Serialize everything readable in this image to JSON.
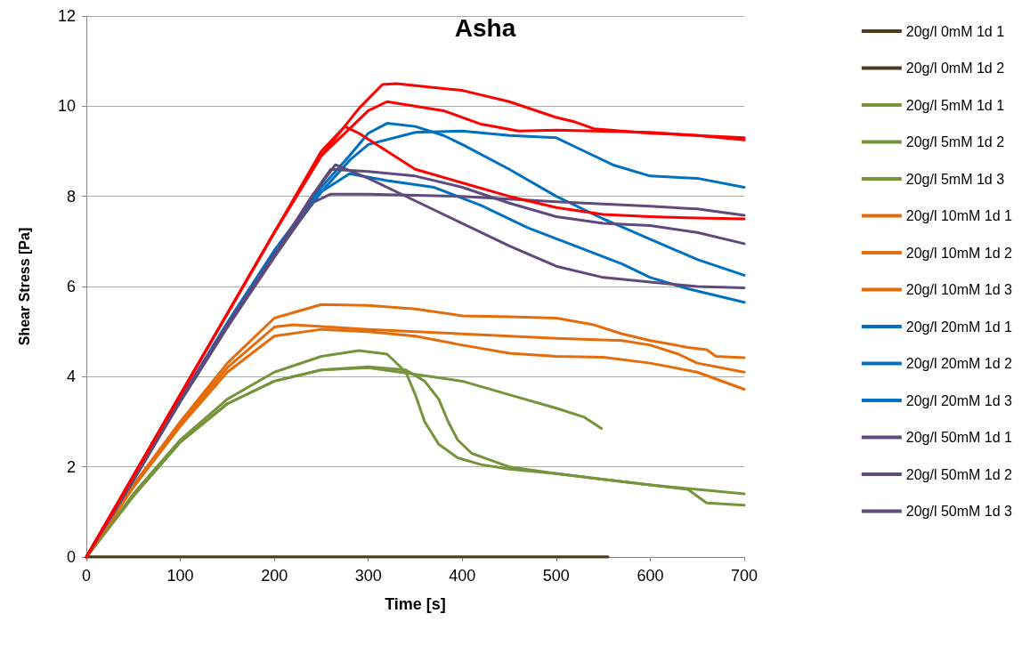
{
  "chart_data": {
    "type": "line",
    "title": "Asha",
    "xlabel": "Time [s]",
    "ylabel": "Shear Stress [Pa]",
    "xlim": [
      0,
      700
    ],
    "xticks": [
      0,
      100,
      200,
      300,
      400,
      500,
      600,
      700
    ],
    "ylim": [
      0,
      12
    ],
    "yticks": [
      0,
      2,
      4,
      6,
      8,
      10,
      12
    ],
    "grid": "y",
    "legend": "right",
    "marker": "none",
    "line_style": "solid",
    "series": [
      {
        "name": "20g/l 0mM 1d 1",
        "color": "#4a3c1c",
        "x": [
          0,
          555
        ],
        "values": [
          0,
          0
        ]
      },
      {
        "name": "20g/l 0mM 1d 2",
        "color": "#4a3c1c",
        "x": [
          0,
          555
        ],
        "values": [
          0,
          0
        ]
      },
      {
        "name": "20g/l 5mM 1d 1",
        "color": "#77933c",
        "x": [
          0,
          50,
          100,
          150,
          200,
          250,
          290,
          320,
          340,
          350,
          360,
          375,
          395,
          420,
          450,
          500,
          550,
          600,
          640,
          660,
          700
        ],
        "values": [
          0,
          1.4,
          2.6,
          3.5,
          4.1,
          4.45,
          4.58,
          4.5,
          4.1,
          3.6,
          3.0,
          2.5,
          2.2,
          2.05,
          1.95,
          1.85,
          1.72,
          1.6,
          1.5,
          1.2,
          1.15
        ]
      },
      {
        "name": "20g/l 5mM 1d 2",
        "color": "#77933c",
        "x": [
          0,
          50,
          100,
          150,
          200,
          250,
          300,
          340,
          360,
          375,
          385,
          395,
          410,
          430,
          450,
          500,
          550,
          600,
          650,
          700
        ],
        "values": [
          0,
          1.35,
          2.55,
          3.4,
          3.9,
          4.15,
          4.22,
          4.15,
          3.9,
          3.5,
          3.0,
          2.6,
          2.3,
          2.15,
          2.0,
          1.85,
          1.72,
          1.6,
          1.5,
          1.4
        ]
      },
      {
        "name": "20g/l 5mM 1d 3",
        "color": "#77933c",
        "x": [
          0,
          50,
          100,
          150,
          200,
          250,
          300,
          350,
          400,
          450,
          500,
          530,
          548
        ],
        "values": [
          0,
          1.35,
          2.55,
          3.4,
          3.9,
          4.15,
          4.2,
          4.05,
          3.9,
          3.6,
          3.3,
          3.1,
          2.85
        ]
      },
      {
        "name": "20g/l 10mM 1d 1",
        "color": "#e46c0a",
        "x": [
          0,
          50,
          100,
          150,
          200,
          250,
          300,
          350,
          400,
          450,
          500,
          540,
          570,
          600,
          640,
          660,
          670,
          700
        ],
        "values": [
          0,
          1.6,
          3.0,
          4.3,
          5.3,
          5.6,
          5.58,
          5.5,
          5.35,
          5.33,
          5.3,
          5.15,
          4.95,
          4.8,
          4.65,
          4.6,
          4.45,
          4.42
        ]
      },
      {
        "name": "20g/l 10mM 1d 2",
        "color": "#e46c0a",
        "x": [
          0,
          50,
          100,
          150,
          200,
          220,
          300,
          400,
          500,
          570,
          600,
          630,
          650,
          700
        ],
        "values": [
          0,
          1.55,
          2.95,
          4.2,
          5.1,
          5.15,
          5.05,
          4.95,
          4.85,
          4.8,
          4.7,
          4.5,
          4.3,
          4.1
        ]
      },
      {
        "name": "20g/l 10mM 1d 3",
        "color": "#e46c0a",
        "x": [
          0,
          50,
          100,
          150,
          200,
          250,
          300,
          350,
          400,
          450,
          500,
          550,
          600,
          650,
          700
        ],
        "values": [
          0,
          1.55,
          2.9,
          4.1,
          4.9,
          5.05,
          5.0,
          4.9,
          4.7,
          4.52,
          4.45,
          4.43,
          4.3,
          4.1,
          3.72
        ]
      },
      {
        "name": "20g/l 20mM 1d 1",
        "color": "#0070c0",
        "x": [
          0,
          50,
          100,
          150,
          200,
          250,
          280,
          300,
          320,
          350,
          380,
          400,
          450,
          500,
          550,
          600,
          650,
          700
        ],
        "values": [
          0,
          1.75,
          3.5,
          5.2,
          6.8,
          8.2,
          8.9,
          9.4,
          9.62,
          9.55,
          9.35,
          9.15,
          8.6,
          8.0,
          7.5,
          7.05,
          6.6,
          6.25
        ]
      },
      {
        "name": "20g/l 20mM 1d 2",
        "color": "#0070c0",
        "x": [
          0,
          50,
          100,
          150,
          200,
          250,
          280,
          300,
          350,
          400,
          450,
          500,
          530,
          560,
          600,
          650,
          700
        ],
        "values": [
          0,
          1.75,
          3.5,
          5.15,
          6.75,
          8.1,
          8.8,
          9.15,
          9.42,
          9.45,
          9.35,
          9.3,
          9.0,
          8.7,
          8.45,
          8.4,
          8.2
        ]
      },
      {
        "name": "20g/l 20mM 1d 3",
        "color": "#0070c0",
        "x": [
          0,
          50,
          100,
          150,
          200,
          250,
          280,
          320,
          370,
          420,
          470,
          520,
          570,
          600,
          640,
          700
        ],
        "values": [
          0,
          1.7,
          3.45,
          5.1,
          6.7,
          8.1,
          8.5,
          8.35,
          8.2,
          7.8,
          7.3,
          6.9,
          6.5,
          6.2,
          5.95,
          5.65
        ]
      },
      {
        "name": "20g/l 50mM 1d 1",
        "color": "#604a7b",
        "x": [
          0,
          50,
          100,
          150,
          200,
          240,
          265,
          300,
          350,
          400,
          450,
          500,
          550,
          600,
          650,
          700
        ],
        "values": [
          0,
          1.75,
          3.5,
          5.15,
          6.7,
          8.0,
          8.7,
          8.4,
          7.9,
          7.4,
          6.9,
          6.45,
          6.2,
          6.1,
          6.0,
          5.97
        ]
      },
      {
        "name": "20g/l 50mM 1d 2",
        "color": "#604a7b",
        "x": [
          0,
          50,
          100,
          150,
          200,
          240,
          260,
          300,
          400,
          500,
          600,
          650,
          700
        ],
        "values": [
          0,
          1.7,
          3.45,
          5.1,
          6.65,
          7.85,
          8.05,
          8.05,
          8.0,
          7.88,
          7.78,
          7.72,
          7.58
        ]
      },
      {
        "name": "20g/l 50mM 1d 3",
        "color": "#604a7b",
        "x": [
          0,
          50,
          100,
          150,
          200,
          240,
          260,
          300,
          350,
          400,
          450,
          500,
          550,
          600,
          650,
          700
        ],
        "values": [
          0,
          1.75,
          3.5,
          5.15,
          6.7,
          8.0,
          8.6,
          8.55,
          8.45,
          8.2,
          7.85,
          7.55,
          7.4,
          7.35,
          7.2,
          6.95
        ]
      },
      {
        "color": "#ff0000",
        "x": [
          0,
          50,
          100,
          150,
          200,
          250,
          290,
          315,
          330,
          400,
          450,
          500,
          520,
          540,
          600,
          650,
          700
        ],
        "values": [
          0,
          1.8,
          3.6,
          5.4,
          7.2,
          8.9,
          9.95,
          10.48,
          10.5,
          10.35,
          10.1,
          9.75,
          9.65,
          9.5,
          9.4,
          9.35,
          9.3
        ]
      },
      {
        "color": "#ff0000",
        "x": [
          0,
          50,
          100,
          150,
          200,
          250,
          300,
          320,
          380,
          420,
          460,
          500,
          600,
          650,
          700
        ],
        "values": [
          0,
          1.8,
          3.6,
          5.4,
          7.2,
          8.9,
          9.9,
          10.1,
          9.9,
          9.6,
          9.45,
          9.47,
          9.42,
          9.35,
          9.25
        ]
      },
      {
        "color": "#ff0000",
        "x": [
          0,
          50,
          100,
          150,
          200,
          250,
          275,
          290,
          320,
          350,
          400,
          450,
          500,
          550,
          600,
          650,
          700
        ],
        "values": [
          0,
          1.8,
          3.6,
          5.4,
          7.2,
          9.0,
          9.55,
          9.4,
          9.0,
          8.6,
          8.3,
          8.0,
          7.75,
          7.6,
          7.55,
          7.52,
          7.5
        ]
      }
    ]
  }
}
